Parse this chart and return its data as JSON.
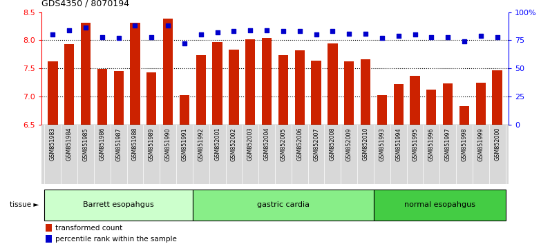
{
  "title": "GDS4350 / 8070194",
  "samples": [
    "GSM851983",
    "GSM851984",
    "GSM851985",
    "GSM851986",
    "GSM851987",
    "GSM851988",
    "GSM851989",
    "GSM851990",
    "GSM851991",
    "GSM851992",
    "GSM852001",
    "GSM852002",
    "GSM852003",
    "GSM852004",
    "GSM852005",
    "GSM852006",
    "GSM852007",
    "GSM852008",
    "GSM852009",
    "GSM852010",
    "GSM851993",
    "GSM851994",
    "GSM851995",
    "GSM851996",
    "GSM851997",
    "GSM851998",
    "GSM851999",
    "GSM852000"
  ],
  "bar_values": [
    7.62,
    7.93,
    8.31,
    7.49,
    7.45,
    8.31,
    7.43,
    8.38,
    7.02,
    7.73,
    7.97,
    7.83,
    8.02,
    8.04,
    7.73,
    7.82,
    7.64,
    7.94,
    7.63,
    7.66,
    7.02,
    7.22,
    7.37,
    7.12,
    7.23,
    6.83,
    7.24,
    7.46
  ],
  "dot_values": [
    80,
    84,
    86,
    78,
    77,
    88,
    78,
    88,
    72,
    80,
    82,
    83,
    84,
    84,
    83,
    83,
    80,
    83,
    81,
    81,
    77,
    79,
    80,
    78,
    78,
    74,
    79,
    78
  ],
  "bar_color": "#cc2200",
  "dot_color": "#0000cc",
  "ymin": 6.5,
  "ymax": 8.5,
  "ylim_left": [
    6.5,
    8.5
  ],
  "ylim_right": [
    0,
    100
  ],
  "yticks_left": [
    6.5,
    7.0,
    7.5,
    8.0,
    8.5
  ],
  "yticks_right": [
    0,
    25,
    50,
    75,
    100
  ],
  "ytick_labels_right": [
    "0",
    "25",
    "50",
    "75",
    "100%"
  ],
  "hlines": [
    7.0,
    7.5,
    8.0
  ],
  "groups": [
    {
      "label": "Barrett esopahgus",
      "start": 0,
      "end": 9,
      "color": "#ccffcc"
    },
    {
      "label": "gastric cardia",
      "start": 9,
      "end": 20,
      "color": "#88ee88"
    },
    {
      "label": "normal esopahgus",
      "start": 20,
      "end": 28,
      "color": "#44cc44"
    }
  ],
  "tissue_label": "tissue ►",
  "legend_bar_label": "transformed count",
  "legend_dot_label": "percentile rank within the sample",
  "bar_width": 0.6,
  "xticklabel_bg": "#dddddd"
}
